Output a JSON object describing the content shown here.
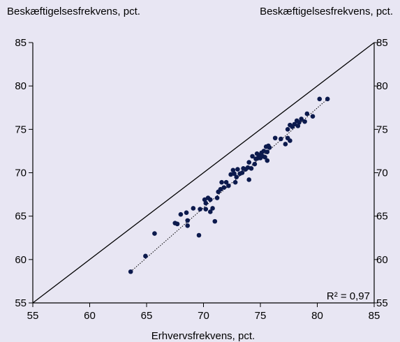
{
  "chart_data": {
    "type": "scatter",
    "ylabel_left": "Beskæftigelsesfrekvens, pct.",
    "ylabel_right": "Beskæftigelsesfrekvens, pct.",
    "xlabel": "Erhvervsfrekvens, pct.",
    "xlim": [
      55,
      85
    ],
    "ylim": [
      55,
      85
    ],
    "xticks": [
      55,
      60,
      65,
      70,
      75,
      80,
      85
    ],
    "yticks": [
      55,
      60,
      65,
      70,
      75,
      80,
      85
    ],
    "tick_labels_x": [
      "55",
      "60",
      "65",
      "70",
      "75",
      "80",
      "85"
    ],
    "tick_labels_y": [
      "55",
      "60",
      "65",
      "70",
      "75",
      "80",
      "85"
    ],
    "grid": false,
    "annotation": "R² = 0,97",
    "reference_line": [
      [
        55,
        55
      ],
      [
        85,
        85
      ]
    ],
    "trendline": [
      [
        63.6,
        58.6
      ],
      [
        80.9,
        78.5
      ]
    ],
    "points": [
      [
        63.6,
        58.6
      ],
      [
        64.9,
        60.4
      ],
      [
        65.7,
        63.0
      ],
      [
        67.5,
        64.2
      ],
      [
        67.7,
        64.1
      ],
      [
        68.0,
        65.2
      ],
      [
        68.5,
        65.4
      ],
      [
        68.6,
        64.5
      ],
      [
        68.6,
        63.9
      ],
      [
        69.1,
        65.9
      ],
      [
        69.6,
        62.8
      ],
      [
        69.7,
        65.8
      ],
      [
        70.1,
        66.9
      ],
      [
        70.2,
        65.8
      ],
      [
        70.2,
        66.5
      ],
      [
        70.4,
        67.1
      ],
      [
        70.6,
        66.9
      ],
      [
        70.6,
        65.5
      ],
      [
        70.8,
        65.9
      ],
      [
        71.0,
        64.4
      ],
      [
        71.2,
        67.1
      ],
      [
        71.3,
        67.8
      ],
      [
        71.5,
        68.1
      ],
      [
        71.6,
        68.9
      ],
      [
        71.8,
        68.3
      ],
      [
        72.0,
        68.9
      ],
      [
        72.2,
        68.5
      ],
      [
        72.4,
        69.8
      ],
      [
        72.6,
        70.3
      ],
      [
        72.7,
        69.9
      ],
      [
        72.8,
        68.9
      ],
      [
        72.9,
        69.5
      ],
      [
        73.0,
        70.4
      ],
      [
        73.2,
        69.9
      ],
      [
        73.4,
        70.0
      ],
      [
        73.5,
        70.5
      ],
      [
        73.7,
        70.4
      ],
      [
        73.9,
        70.6
      ],
      [
        74.0,
        69.2
      ],
      [
        74.0,
        71.2
      ],
      [
        74.2,
        70.5
      ],
      [
        74.3,
        71.9
      ],
      [
        74.5,
        71.0
      ],
      [
        74.6,
        71.6
      ],
      [
        74.7,
        72.2
      ],
      [
        74.8,
        71.7
      ],
      [
        74.9,
        72.0
      ],
      [
        75.0,
        71.7
      ],
      [
        75.1,
        72.3
      ],
      [
        75.2,
        71.9
      ],
      [
        75.3,
        72.5
      ],
      [
        75.4,
        71.8
      ],
      [
        75.5,
        73.0
      ],
      [
        75.6,
        72.4
      ],
      [
        75.7,
        73.1
      ],
      [
        75.8,
        72.9
      ],
      [
        75.6,
        71.4
      ],
      [
        76.3,
        74.0
      ],
      [
        76.8,
        73.9
      ],
      [
        77.2,
        73.3
      ],
      [
        77.4,
        74.0
      ],
      [
        77.4,
        75.0
      ],
      [
        77.6,
        73.7
      ],
      [
        77.6,
        75.5
      ],
      [
        77.8,
        75.3
      ],
      [
        78.0,
        75.6
      ],
      [
        78.2,
        76.0
      ],
      [
        78.3,
        75.4
      ],
      [
        78.4,
        75.8
      ],
      [
        78.6,
        76.2
      ],
      [
        78.9,
        75.9
      ],
      [
        79.1,
        76.8
      ],
      [
        79.6,
        76.5
      ],
      [
        80.2,
        78.5
      ],
      [
        80.9,
        78.5
      ]
    ]
  }
}
